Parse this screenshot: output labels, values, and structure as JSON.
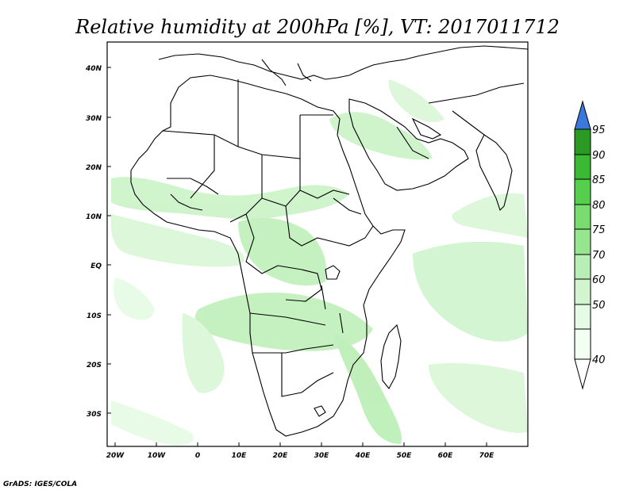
{
  "title": "Relative humidity at 200hPa [%], VT: 2017011712",
  "credit": "GrADS: IGES/COLA",
  "map": {
    "lon_labels": [
      "20W",
      "10W",
      "0",
      "10E",
      "20E",
      "30E",
      "40E",
      "50E",
      "60E",
      "70E"
    ],
    "lat_labels": [
      "40N",
      "30N",
      "20N",
      "10N",
      "EQ",
      "10S",
      "20S",
      "30S"
    ]
  },
  "colorbar": {
    "levels": [
      "40",
      "50",
      "60",
      "70",
      "75",
      "80",
      "85",
      "90",
      "95"
    ],
    "colors": {
      "below_40": "#f4fff4",
      "40_50": "#e6fbe6",
      "50_60": "#d2f5d0",
      "60_70": "#b8efb4",
      "70_75": "#96e690",
      "75_80": "#78dc70",
      "80_85": "#55cf4c",
      "85_90": "#3bb933",
      "90_95": "#2a9a24",
      "above_95": "#3c78dc"
    }
  },
  "colors": {
    "land_outline": "#000000",
    "ocean": "#ffffff",
    "humid_light": "#d2f5d0",
    "humid_mid": "#b8efb4"
  }
}
